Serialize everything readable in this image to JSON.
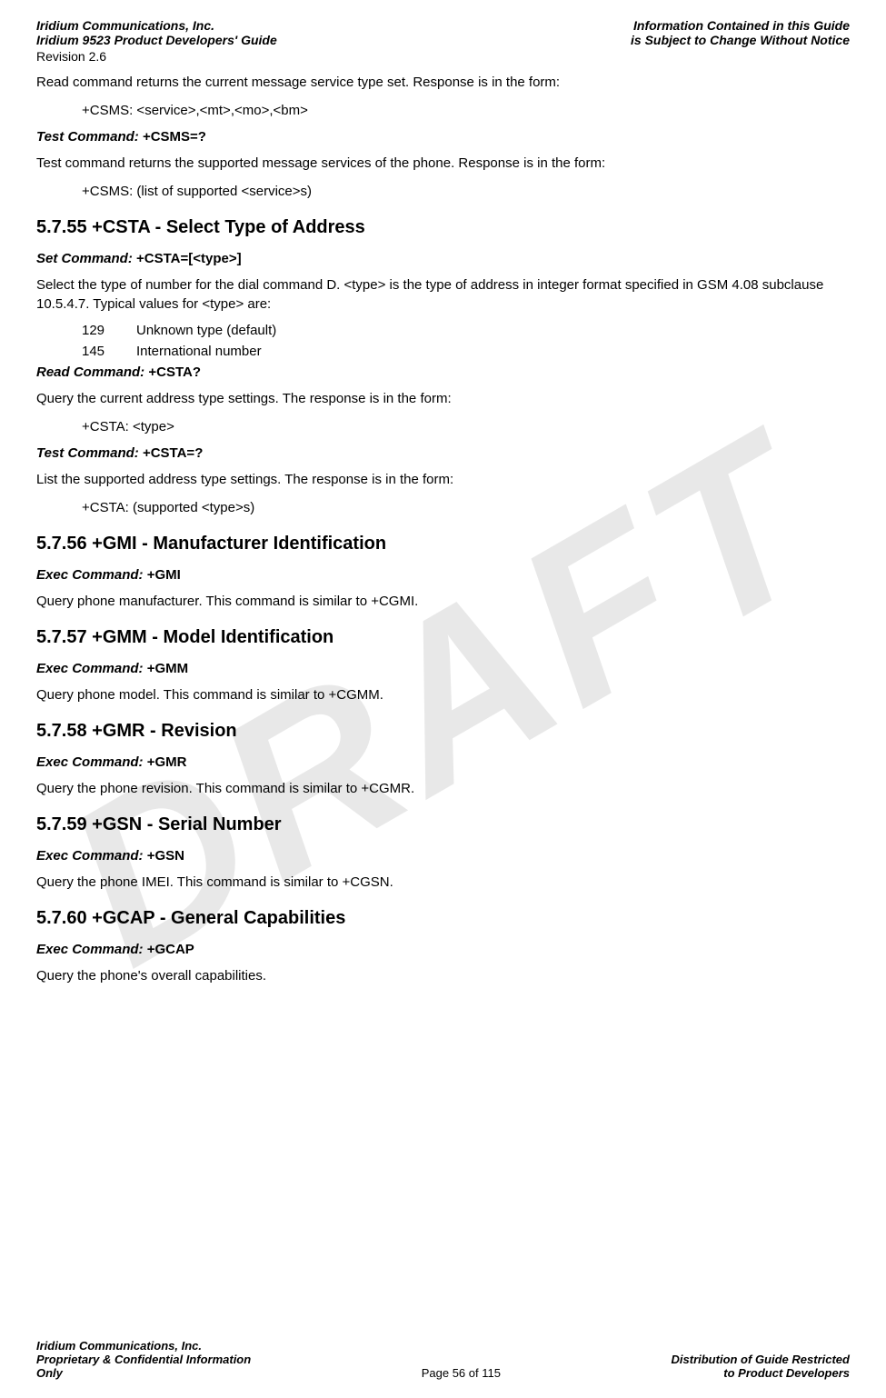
{
  "header": {
    "left_line1": "Iridium Communications, Inc.",
    "left_line2": "Iridium 9523 Product Developers' Guide",
    "right_line1": "Information Contained in this Guide",
    "right_line2": "is Subject to Change Without Notice",
    "revision": "Revision 2.6"
  },
  "watermark": "DRAFT",
  "intro": {
    "p1": "Read command returns the current message service type set.  Response is in the form:",
    "p2": "+CSMS: <service>,<mt>,<mo>,<bm>",
    "test_cmd_label": "Test Command: ",
    "test_cmd_value": "+CSMS=?",
    "p3": "Test command returns the supported message services of the phone.  Response is in the form:",
    "p4": "+CSMS: (list of supported <service>s)"
  },
  "s55": {
    "heading": "5.7.55    +CSTA - Select Type of Address",
    "set_cmd_label": "Set Command: ",
    "set_cmd_value": "+CSTA=[<type>]",
    "p1": "Select the type of number for the dial command D. <type> is the type of address in integer format specified in GSM 4.08 subclause 10.5.4.7.  Typical values for <type> are:",
    "row1_num": "129",
    "row1_desc": "Unknown type (default)",
    "row2_num": "145",
    "row2_desc": "International number",
    "read_cmd_label": "Read Command: ",
    "read_cmd_value": "+CSTA?",
    "p2": "Query the current address type settings.  The response is in the form:",
    "p3": "+CSTA: <type>",
    "test_cmd_label": "Test Command: ",
    "test_cmd_value": "+CSTA=?",
    "p4": "List the supported address type settings.  The response is in the form:",
    "p5": "+CSTA: (supported <type>s)"
  },
  "s56": {
    "heading": "5.7.56    +GMI - Manufacturer Identification",
    "exec_cmd_label": "Exec Command: ",
    "exec_cmd_value": "+GMI",
    "p1": "Query phone manufacturer.  This command is similar to +CGMI."
  },
  "s57": {
    "heading": "5.7.57    +GMM - Model Identification",
    "exec_cmd_label": "Exec Command: ",
    "exec_cmd_value": "+GMM",
    "p1": "Query phone model.  This command is similar to +CGMM."
  },
  "s58": {
    "heading": "5.7.58    +GMR - Revision",
    "exec_cmd_label": "Exec Command: ",
    "exec_cmd_value": "+GMR",
    "p1": "Query the phone revision.  This command is similar to +CGMR."
  },
  "s59": {
    "heading": "5.7.59    +GSN - Serial Number",
    "exec_cmd_label": "Exec Command: ",
    "exec_cmd_value": "+GSN",
    "p1": "Query the phone IMEI.  This command is similar to +CGSN."
  },
  "s60": {
    "heading": "5.7.60    +GCAP - General Capabilities",
    "exec_cmd_label": "Exec Command: ",
    "exec_cmd_value": "+GCAP",
    "p1": "Query the phone's overall capabilities."
  },
  "footer": {
    "left_line1": "Iridium Communications, Inc.",
    "left_line2": "Proprietary & Confidential Information",
    "left_line3": "Only",
    "center": "Page 56 of 115",
    "right_line1": "Distribution of Guide Restricted",
    "right_line2": "to Product Developers"
  }
}
